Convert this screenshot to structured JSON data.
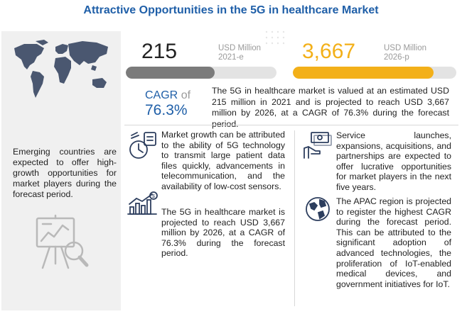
{
  "title": "Attractive Opportunities in the 5G in healthcare Market",
  "left": {
    "text": "Emerging countries are expected to offer high-growth opportunities for market players during the forecast period."
  },
  "stats": {
    "value_2021": "215",
    "unit_2021_line1": "USD Million",
    "unit_2021_line2": "2021-e",
    "value_2026": "3,667",
    "unit_2026_line1": "USD Million",
    "unit_2026_line2": "2026-p",
    "bar_2021_fill_fraction": 0.59,
    "bar_2026_fill_fraction": 0.86,
    "cagr_label": "CAGR",
    "cagr_of": "of",
    "cagr_value": "76.3%"
  },
  "summary": "The 5G in healthcare market is valued at an estimated USD 215 million in 2021 and is projected to reach USD 3,667 million by 2026, at a CAGR of 76.3% during the forecast period.",
  "points": {
    "growth": "Market growth can be attributed to the ability of 5G technology to transmit large patient data files quickly, advancements in telecommunication, and the availability of low-cost sensors.",
    "projection": "The 5G in healthcare market is projected to reach USD 3,667 million by 2026, at a CAGR of 76.3% during the forecast period.",
    "services": "Service launches, expansions, acquisitions, and partnerships are expected to offer lucrative opportunities for market players in the next five years.",
    "apac": "The APAC region is projected to register the highest CAGR during the forecast period. This can be attributed to the significant adoption of advanced technologies, the proliferation of IoT-enabled medical devices, and government initiatives for IoT."
  },
  "colors": {
    "title_blue": "#1f5fa8",
    "bar_grey": "#7b7b7b",
    "bar_orange": "#f3b019",
    "icon_navy": "#2d3e5e"
  },
  "icons": [
    "world-map-icon",
    "analytics-magnifier-icon",
    "data-transmission-icon",
    "rising-chart-dollar-icon",
    "handshake-money-icon",
    "globe-icon"
  ]
}
